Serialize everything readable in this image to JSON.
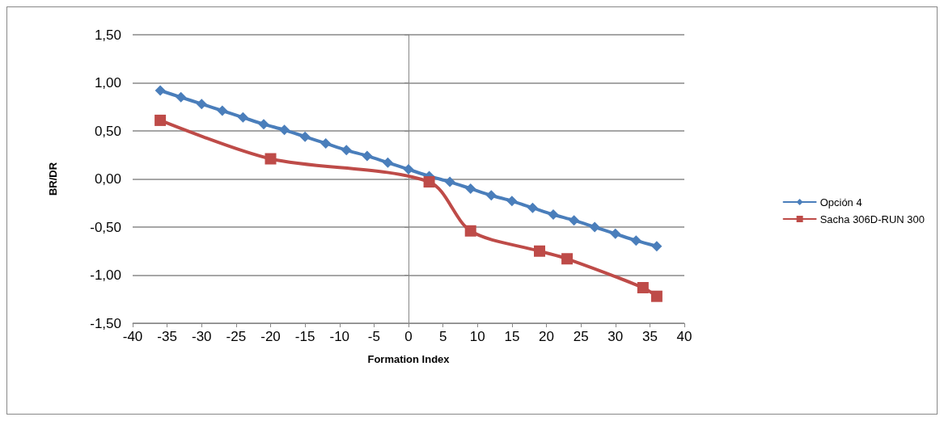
{
  "chart_data": {
    "type": "line",
    "xlabel": "Formation Index",
    "ylabel": "BR/DR",
    "xlim": [
      -40,
      40
    ],
    "xticks": [
      -40,
      -35,
      -30,
      -25,
      -20,
      -15,
      -10,
      -5,
      0,
      5,
      10,
      15,
      20,
      25,
      30,
      35,
      40
    ],
    "ylim": [
      -1.5,
      1.5
    ],
    "yticks": [
      {
        "value": -1.5,
        "label": "-1,50"
      },
      {
        "value": -1,
        "label": "-1,00"
      },
      {
        "value": -0.5,
        "label": "-0,50"
      },
      {
        "value": 0,
        "label": "0,00"
      },
      {
        "value": 0.5,
        "label": "0,50"
      },
      {
        "value": 1,
        "label": "1,00"
      },
      {
        "value": 1.5,
        "label": "1,50"
      }
    ],
    "grid": "y",
    "legend": "right",
    "line_style": "solid",
    "series": [
      {
        "name": "Opción 4",
        "color": "#4a7ebb",
        "marker": "diamond",
        "x": [
          -36,
          -33,
          -30,
          -27,
          -24,
          -21,
          -18,
          -15,
          -12,
          -9,
          -6,
          -3,
          0,
          3,
          6,
          9,
          12,
          15,
          18,
          21,
          24,
          27,
          30,
          33,
          36
        ],
        "values": [
          0.92,
          0.85,
          0.78,
          0.71,
          0.64,
          0.57,
          0.51,
          0.44,
          0.37,
          0.3,
          0.24,
          0.17,
          0.1,
          0.03,
          -0.03,
          -0.1,
          -0.17,
          -0.23,
          -0.3,
          -0.37,
          -0.43,
          -0.5,
          -0.57,
          -0.64,
          -0.7
        ]
      },
      {
        "name": "Sacha 306D-RUN 300",
        "color": "#be4b48",
        "marker": "square",
        "x": [
          -36,
          -20,
          3,
          9,
          19,
          23,
          34,
          36
        ],
        "values": [
          0.61,
          0.21,
          -0.03,
          -0.54,
          -0.75,
          -0.83,
          -1.13,
          -1.22
        ]
      }
    ]
  }
}
